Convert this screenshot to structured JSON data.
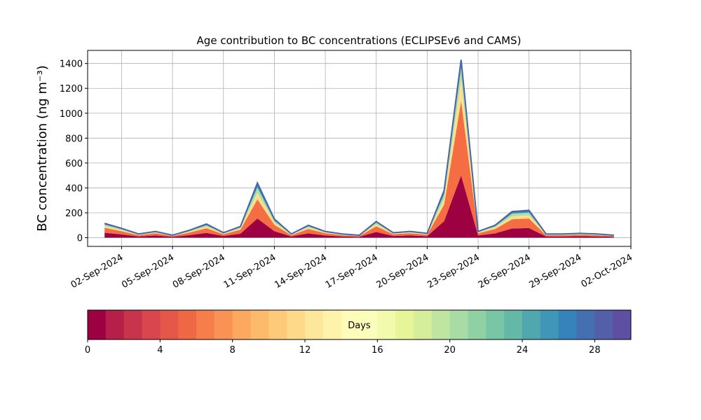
{
  "chart_data": {
    "type": "stacked-area",
    "title": "Age contribution to BC concentrations (ECLIPSEv6 and CAMS)",
    "y_label": "BC concentration (ng m⁻³)",
    "x": [
      "2024-09-01",
      "2024-09-02",
      "2024-09-03",
      "2024-09-04",
      "2024-09-05",
      "2024-09-06",
      "2024-09-07",
      "2024-09-08",
      "2024-09-09",
      "2024-09-10",
      "2024-09-11",
      "2024-09-12",
      "2024-09-13",
      "2024-09-14",
      "2024-09-15",
      "2024-09-16",
      "2024-09-17",
      "2024-09-18",
      "2024-09-19",
      "2024-09-20",
      "2024-09-21",
      "2024-09-22",
      "2024-09-23",
      "2024-09-24",
      "2024-09-25",
      "2024-09-26",
      "2024-09-27",
      "2024-09-28",
      "2024-09-29",
      "2024-09-30",
      "2024-10-01"
    ],
    "series": [
      {
        "color": "#9e0142",
        "values": [
          40,
          26,
          10,
          18,
          7,
          21,
          38,
          14,
          32,
          154,
          52,
          10,
          35,
          18,
          10,
          7,
          46,
          14,
          18,
          12,
          133,
          500,
          18,
          35,
          74,
          77,
          10,
          10,
          12,
          10,
          7
        ]
      },
      {
        "color": "#f46d43",
        "values": [
          40,
          26,
          10,
          18,
          7,
          21,
          38,
          14,
          32,
          154,
          52,
          10,
          35,
          18,
          10,
          7,
          46,
          14,
          18,
          12,
          133,
          600,
          18,
          35,
          74,
          77,
          10,
          10,
          12,
          10,
          7
        ]
      },
      {
        "color": "#fee08b",
        "values": [
          14,
          9,
          4,
          6,
          2,
          7,
          13,
          5,
          11,
          53,
          18,
          4,
          12,
          6,
          4,
          2,
          16,
          5,
          6,
          4,
          46,
          170,
          6,
          12,
          25,
          26,
          4,
          4,
          4,
          4,
          2
        ]
      },
      {
        "color": "#abdda4",
        "values": [
          12,
          8,
          3,
          5,
          2,
          6,
          11,
          4,
          9,
          44,
          15,
          3,
          10,
          5,
          3,
          2,
          13,
          4,
          5,
          4,
          38,
          100,
          5,
          10,
          21,
          22,
          3,
          3,
          4,
          3,
          2
        ]
      },
      {
        "color": "#3288bd",
        "values": [
          9,
          6,
          3,
          3,
          2,
          5,
          10,
          3,
          6,
          35,
          13,
          3,
          8,
          3,
          3,
          2,
          9,
          3,
          3,
          3,
          30,
          60,
          3,
          8,
          16,
          18,
          3,
          3,
          3,
          3,
          2
        ]
      }
    ],
    "outline_color": "#4a64a8",
    "xlim": [
      "2024-08-31",
      "2024-10-02"
    ],
    "xticks": [
      {
        "value": "2024-09-02",
        "label": "02-Sep-2024"
      },
      {
        "value": "2024-09-05",
        "label": "05-Sep-2024"
      },
      {
        "value": "2024-09-08",
        "label": "08-Sep-2024"
      },
      {
        "value": "2024-09-11",
        "label": "11-Sep-2024"
      },
      {
        "value": "2024-09-14",
        "label": "14-Sep-2024"
      },
      {
        "value": "2024-09-17",
        "label": "17-Sep-2024"
      },
      {
        "value": "2024-09-20",
        "label": "20-Sep-2024"
      },
      {
        "value": "2024-09-23",
        "label": "23-Sep-2024"
      },
      {
        "value": "2024-09-26",
        "label": "26-Sep-2024"
      },
      {
        "value": "2024-09-29",
        "label": "29-Sep-2024"
      },
      {
        "value": "2024-10-02",
        "label": "02-Oct-2024"
      }
    ],
    "ylim": [
      -70,
      1505
    ],
    "yticks": [
      0,
      200,
      400,
      600,
      800,
      1000,
      1200,
      1400
    ],
    "grid": true,
    "colorbar": {
      "label": "Days",
      "lim": [
        0,
        30
      ],
      "ticks": [
        0,
        4,
        8,
        12,
        16,
        20,
        24,
        28
      ],
      "colors": [
        "#9e0142",
        "#b51f48",
        "#c9344d",
        "#da464d",
        "#e55749",
        "#ef6845",
        "#f67e4b",
        "#f99355",
        "#fca85e",
        "#fdba6b",
        "#fdca79",
        "#fed98a",
        "#fee79a",
        "#fff2aa",
        "#fffbb8",
        "#fbfdba",
        "#f2faad",
        "#e6f598",
        "#d5ee9b",
        "#c0e5a0",
        "#a9dca4",
        "#90d1a4",
        "#78c6a5",
        "#63b8a7",
        "#50a8ae",
        "#3f96b7",
        "#3682ba",
        "#4470b1",
        "#5360a8",
        "#5e4fa2"
      ]
    }
  }
}
